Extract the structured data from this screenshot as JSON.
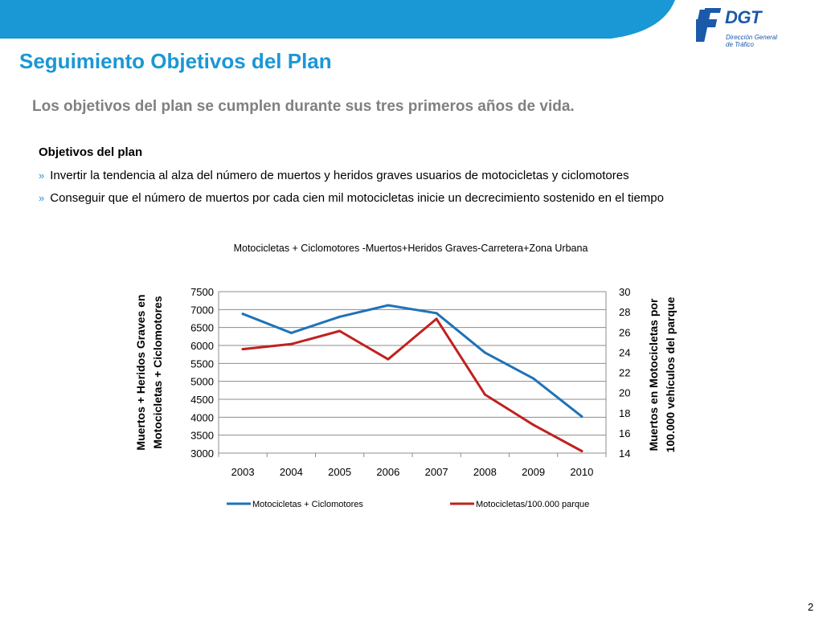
{
  "header": {
    "logo_text": "DGT",
    "logo_subtitle_line1": "Dirección General",
    "logo_subtitle_line2": "de Tráfico",
    "band_color": "#1a97d5"
  },
  "title": "Seguimiento Objetivos del Plan",
  "subtitle": "Los objetivos del plan se cumplen durante sus tres primeros años de vida.",
  "objectives": {
    "heading": "Objetivos del plan",
    "bullet_marker": "»",
    "items": [
      "Invertir la tendencia al alza del número de muertos y heridos graves usuarios de motocicletas y ciclomotores",
      "Conseguir que el número de muertos por cada cien mil motocicletas inicie un decrecimiento sostenido en el tiempo"
    ]
  },
  "chart_data": {
    "type": "line",
    "title": "Motocicletas + Ciclomotores -Muertos+Heridos Graves-Carretera+Zona Urbana",
    "x": [
      "2003",
      "2004",
      "2005",
      "2006",
      "2007",
      "2008",
      "2009",
      "2010"
    ],
    "ylabel_left_line1": "Muertos + Heridos Graves en",
    "ylabel_left_line2": "Motocicletas + Ciclomotores",
    "ylabel_right_line1": "Muertos en Motocicletas por",
    "ylabel_right_line2": "100.000 vehículos del parque",
    "ylim_left": [
      3000,
      7500
    ],
    "yticks_left": [
      "7500",
      "7000",
      "6500",
      "6000",
      "5500",
      "5000",
      "4500",
      "4000",
      "3500",
      "3000"
    ],
    "ylim_right": [
      14,
      30
    ],
    "yticks_right": [
      "30",
      "28",
      "26",
      "24",
      "22",
      "20",
      "18",
      "16",
      "14"
    ],
    "grid": true,
    "legend_position": "bottom",
    "series": [
      {
        "name": "Motocicletas + Ciclomotores",
        "axis": "left",
        "color": "#1f72b8",
        "values": [
          6880,
          6350,
          6800,
          7120,
          6900,
          5800,
          5080,
          4020
        ]
      },
      {
        "name": "Motocicletas/100.000 parque",
        "axis": "right",
        "color": "#c0211f",
        "values": [
          24.3,
          24.8,
          26.1,
          23.3,
          27.3,
          19.8,
          16.8,
          14.2
        ]
      }
    ]
  },
  "page_number": "2"
}
